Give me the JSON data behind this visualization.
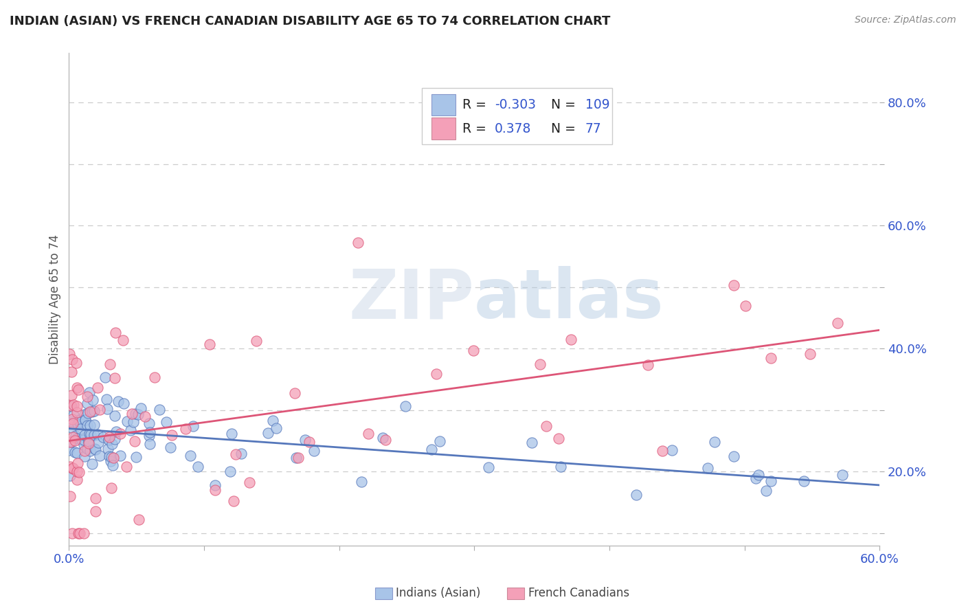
{
  "title": "INDIAN (ASIAN) VS FRENCH CANADIAN DISABILITY AGE 65 TO 74 CORRELATION CHART",
  "source": "Source: ZipAtlas.com",
  "ylabel": "Disability Age 65 to 74",
  "xlim": [
    0.0,
    0.6
  ],
  "ylim": [
    0.08,
    0.88
  ],
  "xticks": [
    0.0,
    0.1,
    0.2,
    0.3,
    0.4,
    0.5,
    0.6
  ],
  "xticklabels": [
    "0.0%",
    "",
    "",
    "",
    "",
    "",
    "60.0%"
  ],
  "yticks": [
    0.1,
    0.2,
    0.3,
    0.4,
    0.5,
    0.6,
    0.7,
    0.8
  ],
  "yticklabels": [
    "",
    "20.0%",
    "",
    "40.0%",
    "",
    "60.0%",
    "",
    "80.0%"
  ],
  "series1_color": "#a8c4e8",
  "series2_color": "#f4a0b8",
  "line1_color": "#5577bb",
  "line2_color": "#dd5577",
  "series1_label": "Indians (Asian)",
  "series2_label": "French Canadians",
  "R1": -0.303,
  "N1": 109,
  "R2": 0.378,
  "N2": 77,
  "legend_color": "#3355cc",
  "neg_color": "#cc3333",
  "background_color": "#ffffff",
  "grid_color": "#cccccc",
  "title_color": "#222222",
  "line1_start_y": 0.27,
  "line1_end_y": 0.178,
  "line2_start_y": 0.25,
  "line2_end_y": 0.43,
  "watermark": "ZIPatlas",
  "watermark_zip_color": "#c8d8e8",
  "watermark_atlas_color": "#a0b8d8"
}
